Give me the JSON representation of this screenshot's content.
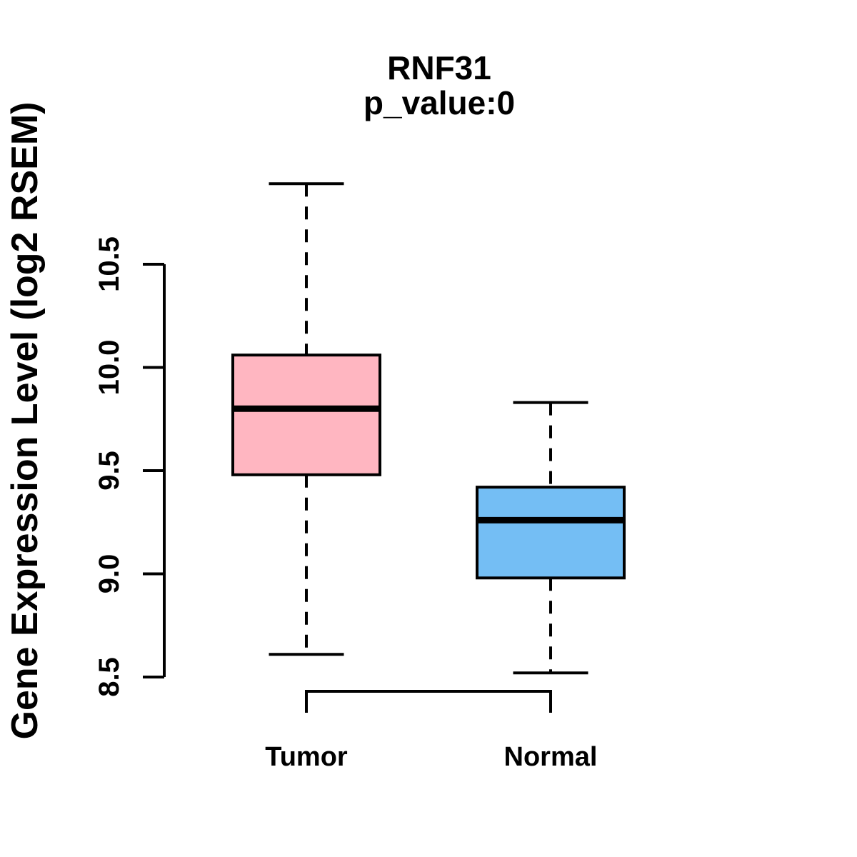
{
  "chart_data": {
    "type": "boxplot",
    "title": "RNF31",
    "subtitle": "p_value:0",
    "ylabel": "Gene Expression Level (log2 RSEM)",
    "xlabel": "",
    "ylim": [
      8.5,
      10.5
    ],
    "yticks": [
      8.5,
      9.0,
      9.5,
      10.0,
      10.5
    ],
    "ytick_labels": [
      "8.5",
      "9.0",
      "9.5",
      "10.0",
      "10.5"
    ],
    "categories": [
      "Tumor",
      "Normal"
    ],
    "series": [
      {
        "name": "Tumor",
        "color": "#FFB6C1",
        "whisker_low": 8.61,
        "q1": 9.48,
        "median": 9.8,
        "q3": 10.06,
        "whisker_high": 10.89
      },
      {
        "name": "Normal",
        "color": "#74BEF4",
        "whisker_low": 8.52,
        "q1": 8.98,
        "median": 9.26,
        "q3": 9.42,
        "whisker_high": 9.83
      }
    ],
    "bracket": {
      "between": [
        "Tumor",
        "Normal"
      ]
    },
    "legend": "none",
    "grid": "off",
    "colors": {
      "box_border": "#000000",
      "median_line": "#000000",
      "axis": "#000000",
      "background": "#FFFFFF"
    }
  }
}
